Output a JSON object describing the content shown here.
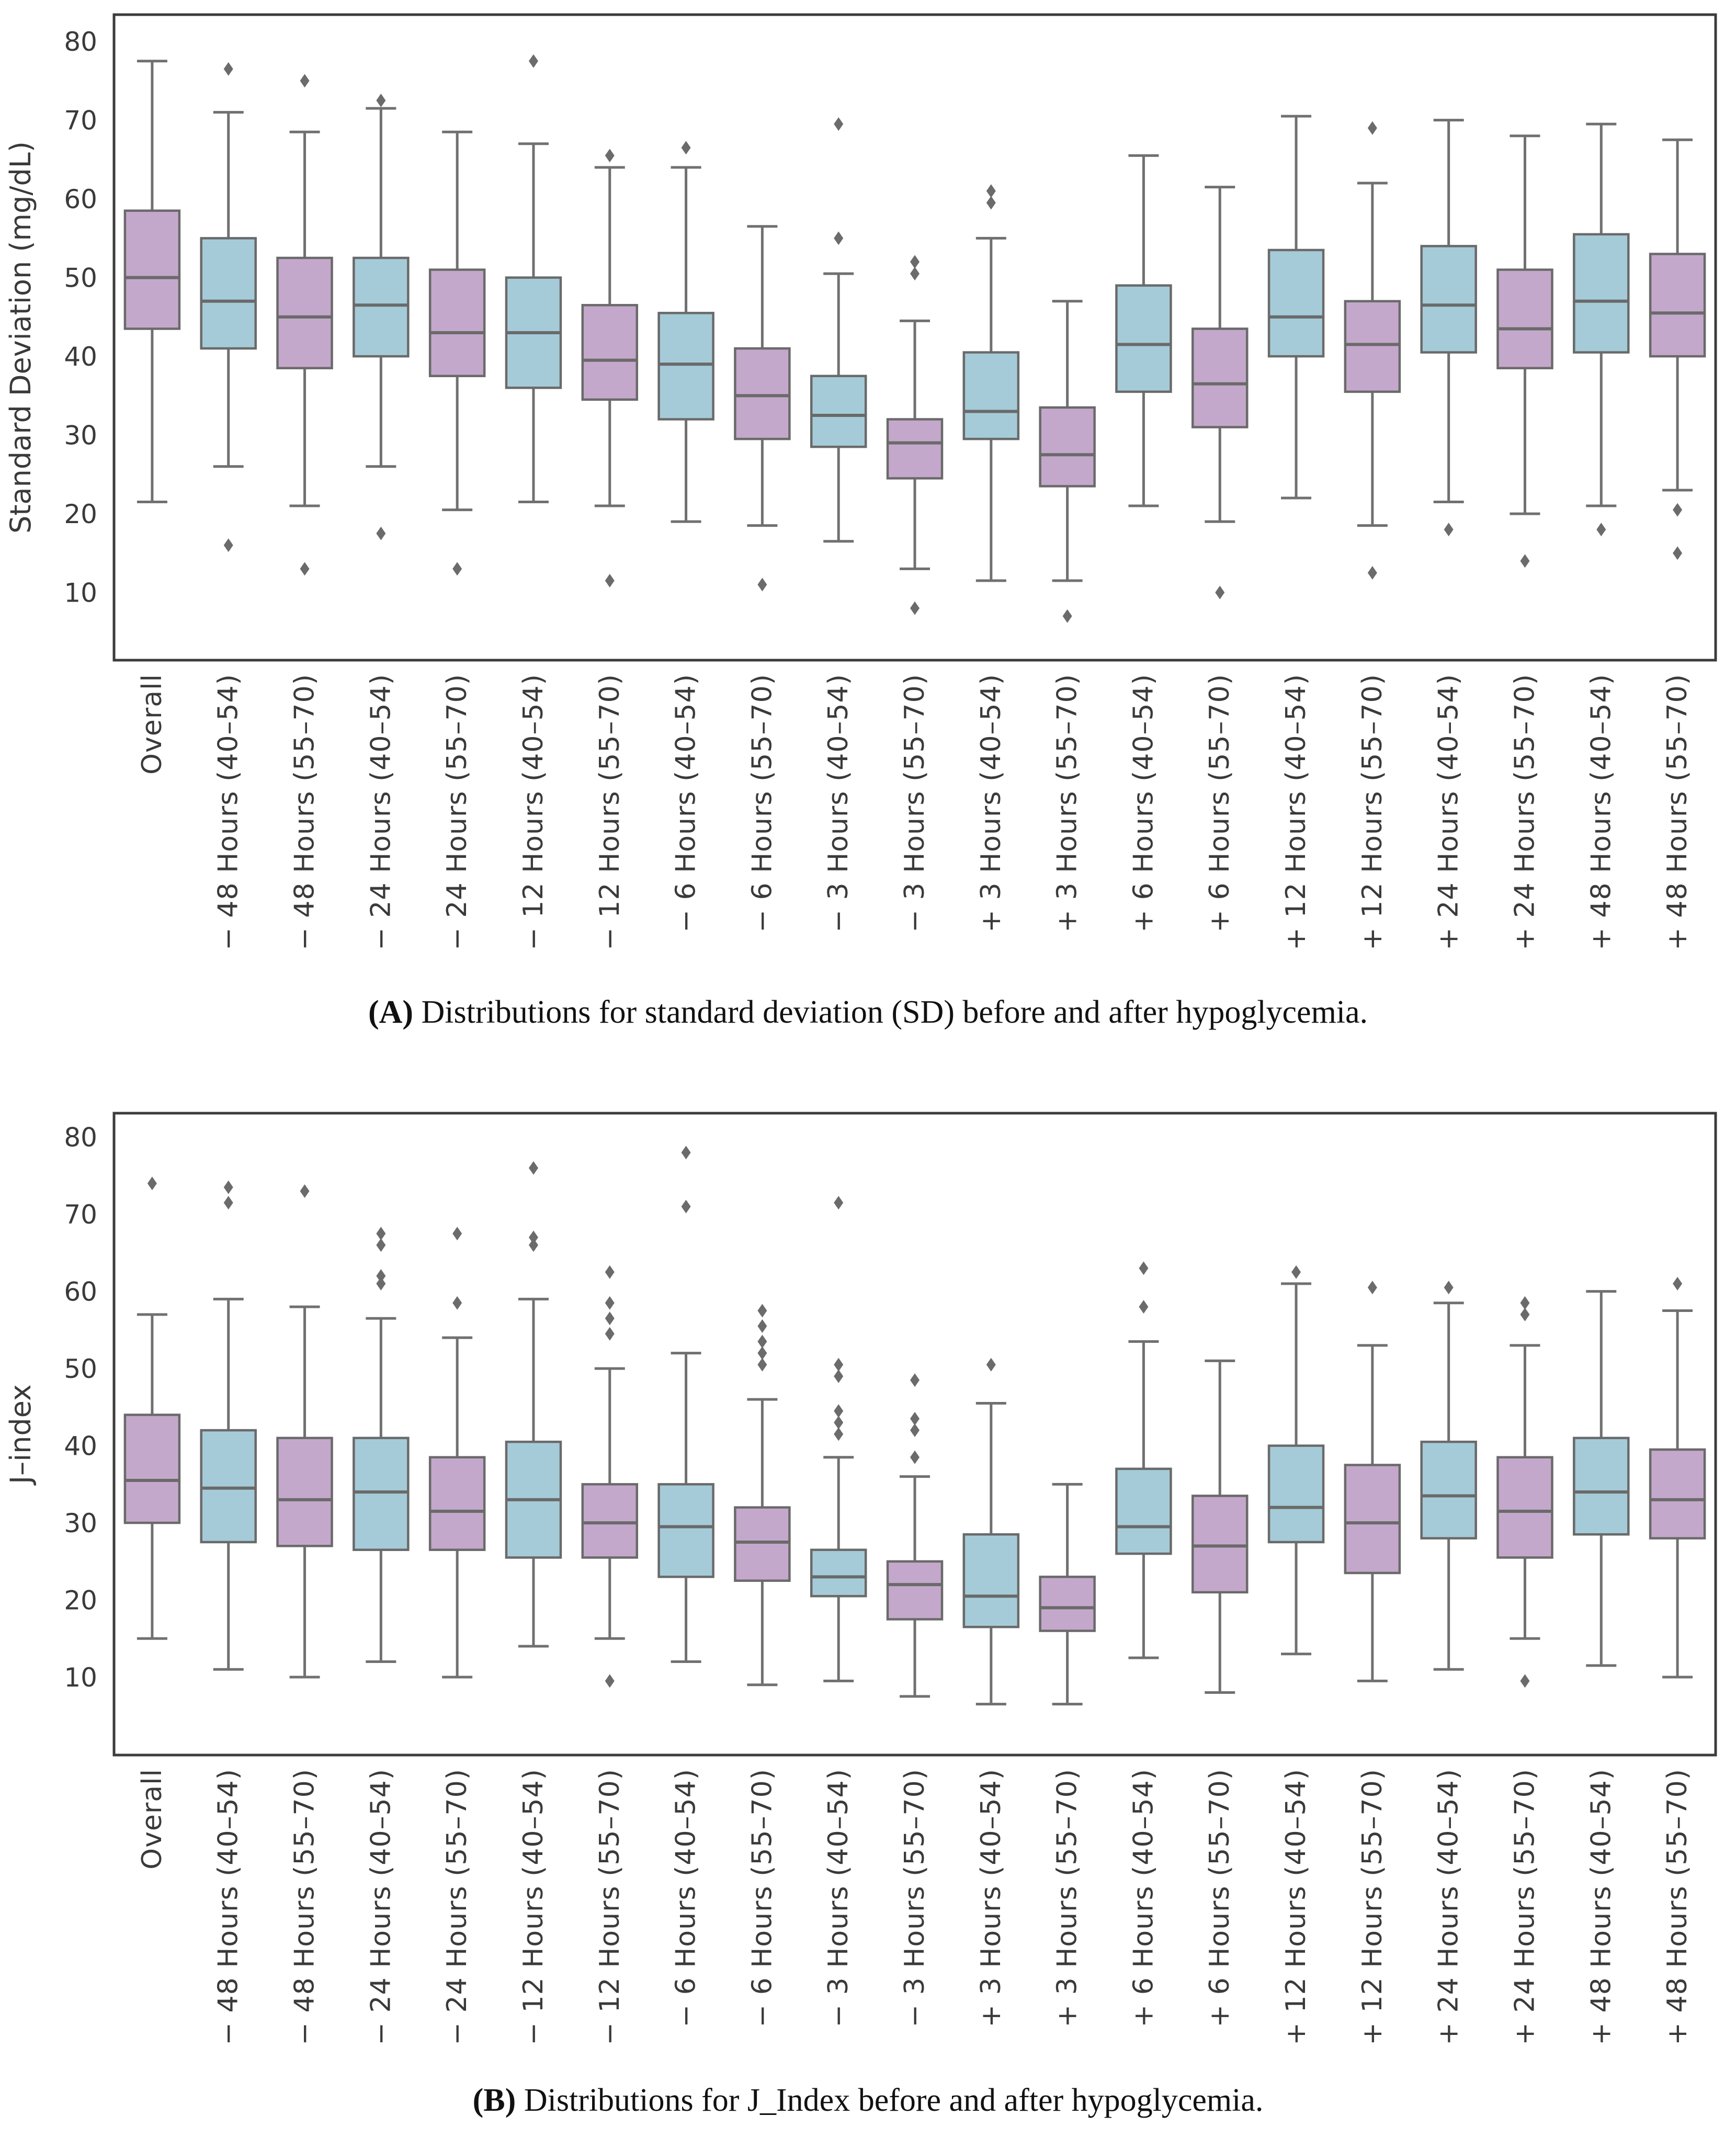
{
  "figure": {
    "background": "#ffffff",
    "colors": {
      "blue": "#a5cbd8",
      "purple": "#c4a8cb",
      "edge": "#6a6a6a",
      "whisker": "#707070",
      "outlier": "#6b6b6b",
      "frame": "#3c3c3c",
      "tick_text": "#3a3a3a"
    },
    "captions": [
      {
        "letter_display": "(A)",
        "text": " Distributions for standard deviation (SD) before and after hypoglycemia."
      },
      {
        "letter_display": "(B)",
        "text": " Distributions for J_Index before and after hypoglycemia."
      }
    ]
  },
  "chart_data": [
    {
      "type": "box",
      "panel": "A",
      "title": "",
      "xlabel": "",
      "ylabel": "Standard Deviation (mg/dL)",
      "ylim": [
        1.4,
        83.4
      ],
      "yticks": [
        80,
        70,
        60,
        50,
        40,
        30,
        20,
        10
      ],
      "grid": false,
      "legend": "none",
      "x_tick_rotation": 90,
      "categories": [
        "Overall",
        "− 48 Hours (40–54)",
        "− 48 Hours (55–70)",
        "− 24 Hours (40–54)",
        "− 24 Hours (55–70)",
        "− 12 Hours (40–54)",
        "− 12 Hours (55–70)",
        "− 6 Hours (40–54)",
        "− 6 Hours (55–70)",
        "− 3 Hours (40–54)",
        "− 3 Hours (55–70)",
        "+ 3 Hours (40–54)",
        "+ 3 Hours (55–70)",
        "+ 6 Hours (40–54)",
        "+ 6 Hours (55–70)",
        "+ 12 Hours (40–54)",
        "+ 12 Hours (55–70)",
        "+ 24 Hours (40–54)",
        "+ 24 Hours (55–70)",
        "+ 48 Hours (40–54)",
        "+ 48 Hours (55–70)"
      ],
      "boxes": [
        {
          "category": "Overall",
          "color": "purple",
          "q1": 43.5,
          "median": 50,
          "q3": 58.5,
          "whisker_low": 21.5,
          "whisker_high": 77.5,
          "outliers": []
        },
        {
          "category": "− 48 Hours (40–54)",
          "color": "blue",
          "q1": 41,
          "median": 47,
          "q3": 55,
          "whisker_low": 26,
          "whisker_high": 71,
          "outliers": [
            76.5,
            16
          ]
        },
        {
          "category": "− 48 Hours (55–70)",
          "color": "purple",
          "q1": 38.5,
          "median": 45,
          "q3": 52.5,
          "whisker_low": 21,
          "whisker_high": 68.5,
          "outliers": [
            75,
            13
          ]
        },
        {
          "category": "− 24 Hours (40–54)",
          "color": "blue",
          "q1": 40,
          "median": 46.5,
          "q3": 52.5,
          "whisker_low": 26,
          "whisker_high": 71.5,
          "outliers": [
            72.5,
            17.5
          ]
        },
        {
          "category": "− 24 Hours (55–70)",
          "color": "purple",
          "q1": 37.5,
          "median": 43,
          "q3": 51,
          "whisker_low": 20.5,
          "whisker_high": 68.5,
          "outliers": [
            13
          ]
        },
        {
          "category": "− 12 Hours (40–54)",
          "color": "blue",
          "q1": 36,
          "median": 43,
          "q3": 50,
          "whisker_low": 21.5,
          "whisker_high": 67,
          "outliers": [
            77.5
          ]
        },
        {
          "category": "− 12 Hours (55–70)",
          "color": "purple",
          "q1": 34.5,
          "median": 39.5,
          "q3": 46.5,
          "whisker_low": 21,
          "whisker_high": 64,
          "outliers": [
            65.5,
            11.5
          ]
        },
        {
          "category": "− 6 Hours (40–54)",
          "color": "blue",
          "q1": 32,
          "median": 39,
          "q3": 45.5,
          "whisker_low": 19,
          "whisker_high": 64,
          "outliers": [
            66.5
          ]
        },
        {
          "category": "− 6 Hours (55–70)",
          "color": "purple",
          "q1": 29.5,
          "median": 35,
          "q3": 41,
          "whisker_low": 18.5,
          "whisker_high": 56.5,
          "outliers": [
            11
          ]
        },
        {
          "category": "− 3 Hours (40–54)",
          "color": "blue",
          "q1": 28.5,
          "median": 32.5,
          "q3": 37.5,
          "whisker_low": 16.5,
          "whisker_high": 50.5,
          "outliers": [
            69.5,
            55
          ]
        },
        {
          "category": "− 3 Hours (55–70)",
          "color": "purple",
          "q1": 24.5,
          "median": 29,
          "q3": 32,
          "whisker_low": 13,
          "whisker_high": 44.5,
          "outliers": [
            52,
            50.5,
            8
          ]
        },
        {
          "category": "+ 3 Hours (40–54)",
          "color": "blue",
          "q1": 29.5,
          "median": 33,
          "q3": 40.5,
          "whisker_low": 11.5,
          "whisker_high": 55,
          "outliers": [
            61,
            59.5
          ]
        },
        {
          "category": "+ 3 Hours (55–70)",
          "color": "purple",
          "q1": 23.5,
          "median": 27.5,
          "q3": 33.5,
          "whisker_low": 11.5,
          "whisker_high": 47,
          "outliers": [
            7
          ]
        },
        {
          "category": "+ 6 Hours (40–54)",
          "color": "blue",
          "q1": 35.5,
          "median": 41.5,
          "q3": 49,
          "whisker_low": 21,
          "whisker_high": 65.5,
          "outliers": []
        },
        {
          "category": "+ 6 Hours (55–70)",
          "color": "purple",
          "q1": 31,
          "median": 36.5,
          "q3": 43.5,
          "whisker_low": 19,
          "whisker_high": 61.5,
          "outliers": [
            10
          ]
        },
        {
          "category": "+ 12 Hours (40–54)",
          "color": "blue",
          "q1": 40,
          "median": 45,
          "q3": 53.5,
          "whisker_low": 22,
          "whisker_high": 70.5,
          "outliers": []
        },
        {
          "category": "+ 12 Hours (55–70)",
          "color": "purple",
          "q1": 35.5,
          "median": 41.5,
          "q3": 47,
          "whisker_low": 18.5,
          "whisker_high": 62,
          "outliers": [
            69,
            12.5
          ]
        },
        {
          "category": "+ 24 Hours (40–54)",
          "color": "blue",
          "q1": 40.5,
          "median": 46.5,
          "q3": 54,
          "whisker_low": 21.5,
          "whisker_high": 70,
          "outliers": [
            18
          ]
        },
        {
          "category": "+ 24 Hours (55–70)",
          "color": "purple",
          "q1": 38.5,
          "median": 43.5,
          "q3": 51,
          "whisker_low": 20,
          "whisker_high": 68,
          "outliers": [
            14
          ]
        },
        {
          "category": "+ 48 Hours (40–54)",
          "color": "blue",
          "q1": 40.5,
          "median": 47,
          "q3": 55.5,
          "whisker_low": 21,
          "whisker_high": 69.5,
          "outliers": [
            18
          ]
        },
        {
          "category": "+ 48 Hours (55–70)",
          "color": "purple",
          "q1": 40,
          "median": 45.5,
          "q3": 53,
          "whisker_low": 23,
          "whisker_high": 67.5,
          "outliers": [
            20.5,
            15
          ]
        }
      ]
    },
    {
      "type": "box",
      "panel": "B",
      "title": "",
      "xlabel": "",
      "ylabel": "J–index",
      "ylim": [
        -0.1,
        83.1
      ],
      "yticks": [
        80,
        70,
        60,
        50,
        40,
        30,
        20,
        10
      ],
      "grid": false,
      "legend": "none",
      "x_tick_rotation": 90,
      "categories": [
        "Overall",
        "− 48 Hours (40–54)",
        "− 48 Hours (55–70)",
        "− 24 Hours (40–54)",
        "− 24 Hours (55–70)",
        "− 12 Hours (40–54)",
        "− 12 Hours (55–70)",
        "− 6 Hours (40–54)",
        "− 6 Hours (55–70)",
        "− 3 Hours (40–54)",
        "− 3 Hours (55–70)",
        "+ 3 Hours (40–54)",
        "+ 3 Hours (55–70)",
        "+ 6 Hours (40–54)",
        "+ 6 Hours (55–70)",
        "+ 12 Hours (40–54)",
        "+ 12 Hours (55–70)",
        "+ 24 Hours (40–54)",
        "+ 24 Hours (55–70)",
        "+ 48 Hours (40–54)",
        "+ 48 Hours (55–70)"
      ],
      "boxes": [
        {
          "category": "Overall",
          "color": "purple",
          "q1": 30,
          "median": 35.5,
          "q3": 44,
          "whisker_low": 15,
          "whisker_high": 57,
          "outliers": [
            74
          ]
        },
        {
          "category": "− 48 Hours (40–54)",
          "color": "blue",
          "q1": 27.5,
          "median": 34.5,
          "q3": 42,
          "whisker_low": 11,
          "whisker_high": 59,
          "outliers": [
            73.5,
            71.5
          ]
        },
        {
          "category": "− 48 Hours (55–70)",
          "color": "purple",
          "q1": 27,
          "median": 33,
          "q3": 41,
          "whisker_low": 10,
          "whisker_high": 58,
          "outliers": [
            73
          ]
        },
        {
          "category": "− 24 Hours (40–54)",
          "color": "blue",
          "q1": 26.5,
          "median": 34,
          "q3": 41,
          "whisker_low": 12,
          "whisker_high": 56.5,
          "outliers": [
            67.5,
            66,
            62,
            61
          ]
        },
        {
          "category": "− 24 Hours (55–70)",
          "color": "purple",
          "q1": 26.5,
          "median": 31.5,
          "q3": 38.5,
          "whisker_low": 10,
          "whisker_high": 54,
          "outliers": [
            67.5,
            58.5
          ]
        },
        {
          "category": "− 12 Hours (40–54)",
          "color": "blue",
          "q1": 25.5,
          "median": 33,
          "q3": 40.5,
          "whisker_low": 14,
          "whisker_high": 59,
          "outliers": [
            76,
            67,
            66
          ]
        },
        {
          "category": "− 12 Hours (55–70)",
          "color": "purple",
          "q1": 25.5,
          "median": 30,
          "q3": 35,
          "whisker_low": 15,
          "whisker_high": 50,
          "outliers": [
            62.5,
            58.5,
            56.5,
            54.5,
            9.5
          ]
        },
        {
          "category": "− 6 Hours (40–54)",
          "color": "blue",
          "q1": 23,
          "median": 29.5,
          "q3": 35,
          "whisker_low": 12,
          "whisker_high": 52,
          "outliers": [
            78,
            71
          ]
        },
        {
          "category": "− 6 Hours (55–70)",
          "color": "purple",
          "q1": 22.5,
          "median": 27.5,
          "q3": 32,
          "whisker_low": 9,
          "whisker_high": 46,
          "outliers": [
            57.5,
            55.5,
            53.5,
            52,
            50.5
          ]
        },
        {
          "category": "− 3 Hours (40–54)",
          "color": "blue",
          "q1": 20.5,
          "median": 23,
          "q3": 26.5,
          "whisker_low": 9.5,
          "whisker_high": 38.5,
          "outliers": [
            71.5,
            50.5,
            49,
            44.5,
            43,
            41.5
          ]
        },
        {
          "category": "− 3 Hours (55–70)",
          "color": "purple",
          "q1": 17.5,
          "median": 22,
          "q3": 25,
          "whisker_low": 7.5,
          "whisker_high": 36,
          "outliers": [
            48.5,
            43.5,
            42,
            38.5
          ]
        },
        {
          "category": "+ 3 Hours (40–54)",
          "color": "blue",
          "q1": 16.5,
          "median": 20.5,
          "q3": 28.5,
          "whisker_low": 6.5,
          "whisker_high": 45.5,
          "outliers": [
            50.5
          ]
        },
        {
          "category": "+ 3 Hours (55–70)",
          "color": "purple",
          "q1": 16,
          "median": 19,
          "q3": 23,
          "whisker_low": 6.5,
          "whisker_high": 35,
          "outliers": []
        },
        {
          "category": "+ 6 Hours (40–54)",
          "color": "blue",
          "q1": 26,
          "median": 29.5,
          "q3": 37,
          "whisker_low": 12.5,
          "whisker_high": 53.5,
          "outliers": [
            63,
            58
          ]
        },
        {
          "category": "+ 6 Hours (55–70)",
          "color": "purple",
          "q1": 21,
          "median": 27,
          "q3": 33.5,
          "whisker_low": 8,
          "whisker_high": 51,
          "outliers": []
        },
        {
          "category": "+ 12 Hours (40–54)",
          "color": "blue",
          "q1": 27.5,
          "median": 32,
          "q3": 40,
          "whisker_low": 13,
          "whisker_high": 61,
          "outliers": [
            62.5
          ]
        },
        {
          "category": "+ 12 Hours (55–70)",
          "color": "purple",
          "q1": 23.5,
          "median": 30,
          "q3": 37.5,
          "whisker_low": 9.5,
          "whisker_high": 53,
          "outliers": [
            60.5
          ]
        },
        {
          "category": "+ 24 Hours (40–54)",
          "color": "blue",
          "q1": 28,
          "median": 33.5,
          "q3": 40.5,
          "whisker_low": 11,
          "whisker_high": 58.5,
          "outliers": [
            60.5
          ]
        },
        {
          "category": "+ 24 Hours (55–70)",
          "color": "purple",
          "q1": 25.5,
          "median": 31.5,
          "q3": 38.5,
          "whisker_low": 15,
          "whisker_high": 53,
          "outliers": [
            58.5,
            57,
            9.5
          ]
        },
        {
          "category": "+ 48 Hours (40–54)",
          "color": "blue",
          "q1": 28.5,
          "median": 34,
          "q3": 41,
          "whisker_low": 11.5,
          "whisker_high": 60,
          "outliers": []
        },
        {
          "category": "+ 48 Hours (55–70)",
          "color": "purple",
          "q1": 28,
          "median": 33,
          "q3": 39.5,
          "whisker_low": 10,
          "whisker_high": 57.5,
          "outliers": [
            61
          ]
        }
      ]
    }
  ]
}
